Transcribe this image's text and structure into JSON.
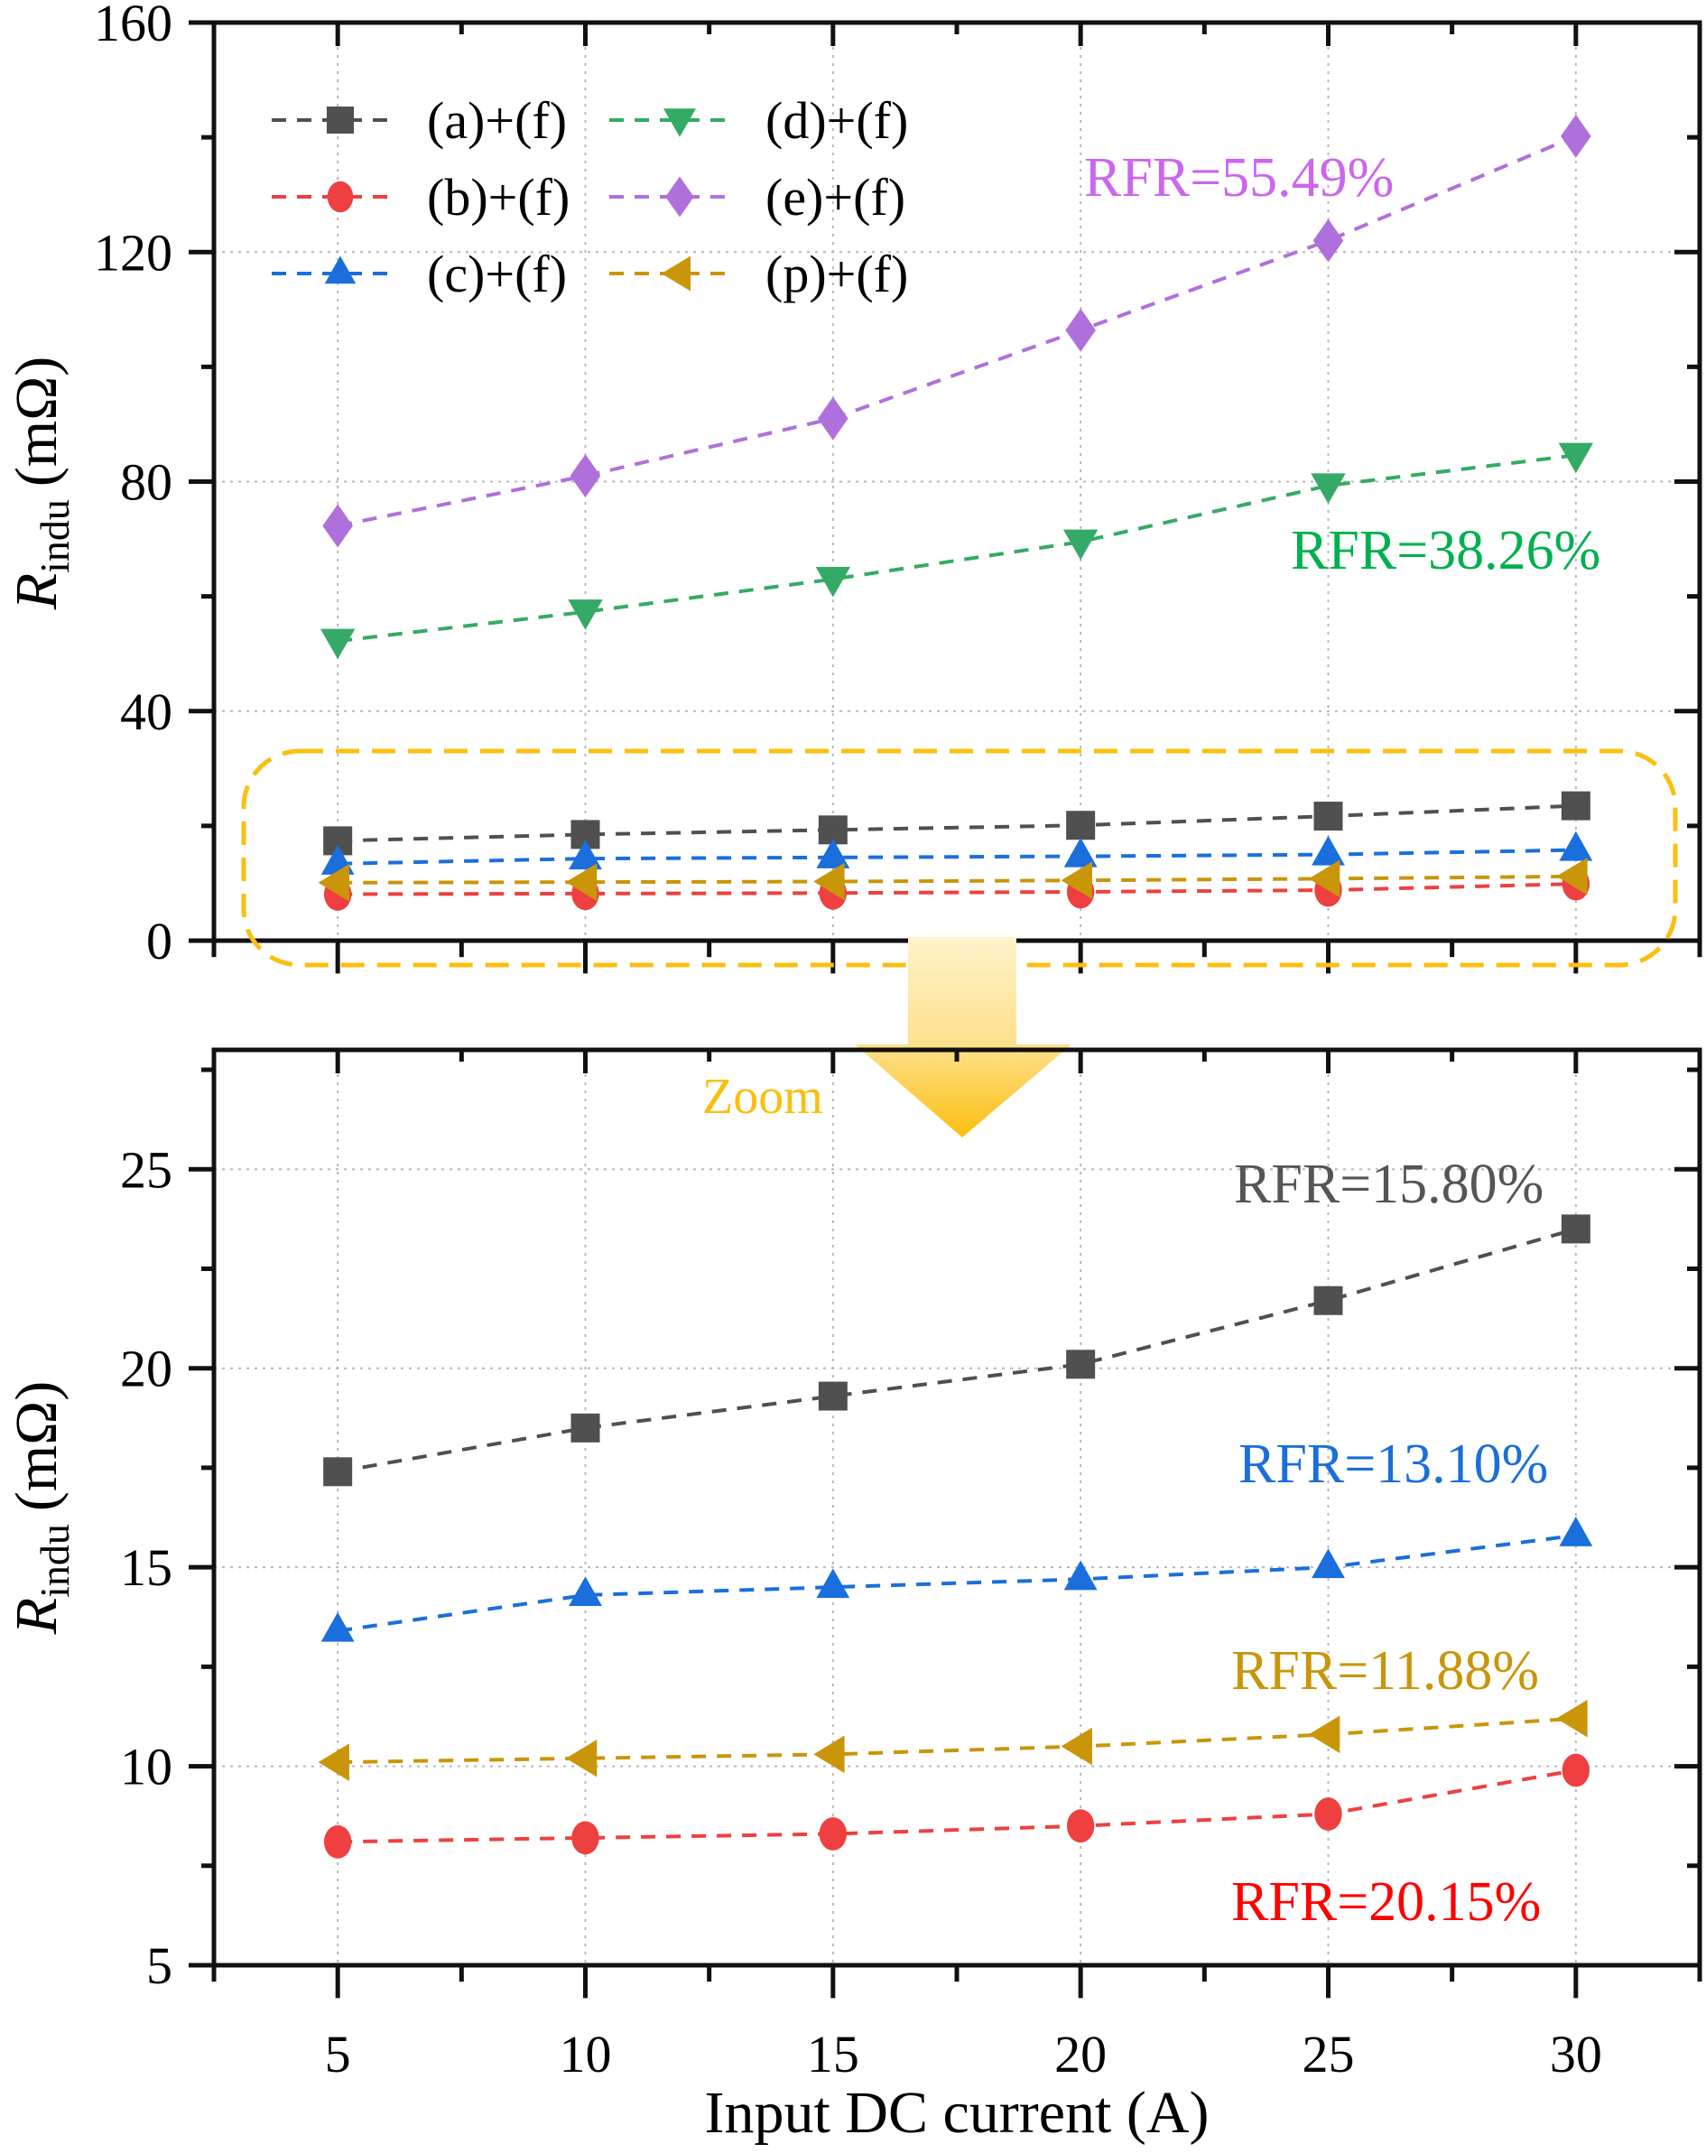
{
  "chart_data": [
    {
      "id": "overview",
      "type": "line",
      "title": "",
      "xlabel": "",
      "ylabel": "R_indu (mΩ)",
      "ylabel_main": "R",
      "ylabel_sub": "indu",
      "ylabel_unit": "(mΩ)",
      "xlim": [
        2.5,
        32.5
      ],
      "ylim": [
        0,
        160
      ],
      "x_ticks": [
        5,
        10,
        15,
        20,
        25,
        30
      ],
      "y_ticks": [
        0,
        40,
        80,
        120,
        160
      ],
      "y_tick_labels": [
        "0",
        "40",
        "80",
        "120",
        "160"
      ],
      "grid": true,
      "legend_position": "top-left",
      "x": [
        5,
        10,
        15,
        20,
        25,
        30
      ],
      "series": [
        {
          "name": "(a)+(f)",
          "marker": "square",
          "color": "#505050",
          "values": [
            17.4,
            18.5,
            19.3,
            20.1,
            21.7,
            23.5
          ]
        },
        {
          "name": "(b)+(f)",
          "marker": "circle",
          "color": "#ee4040",
          "values": [
            8.1,
            8.2,
            8.3,
            8.5,
            8.8,
            9.9
          ]
        },
        {
          "name": "(c)+(f)",
          "marker": "triangle-up",
          "color": "#1a6fdc",
          "values": [
            13.4,
            14.3,
            14.5,
            14.7,
            15.0,
            15.8
          ]
        },
        {
          "name": "(d)+(f)",
          "marker": "triangle-down",
          "color": "#35aa66",
          "values": [
            52.2,
            57.3,
            63.0,
            69.5,
            79.3,
            84.6
          ]
        },
        {
          "name": "(e)+(f)",
          "marker": "diamond",
          "color": "#b070dc",
          "values": [
            72.3,
            81.0,
            91.0,
            106.4,
            122.0,
            140.2
          ]
        },
        {
          "name": "(p)+(f)",
          "marker": "triangle-left",
          "color": "#c9960a",
          "values": [
            10.1,
            10.2,
            10.3,
            10.5,
            10.8,
            11.2
          ]
        }
      ],
      "legend_order": [
        0,
        3,
        1,
        4,
        2,
        5
      ],
      "annotations": [
        {
          "text": "RFR=55.49%",
          "color": "#cc66ee",
          "series": "(e)+(f)"
        },
        {
          "text": "RFR=38.26%",
          "color": "#00b050",
          "series": "(d)+(f)"
        }
      ],
      "highlight_box": {
        "label": "zoom region",
        "color": "#fbbf10",
        "y_range": [
          5,
          28
        ]
      }
    },
    {
      "id": "zoomed",
      "type": "line",
      "title": "",
      "xlabel": "Input DC current (A)",
      "ylabel": "R_indu (mΩ)",
      "ylabel_main": "R",
      "ylabel_sub": "indu",
      "ylabel_unit": "(mΩ)",
      "xlim": [
        2.5,
        32.5
      ],
      "ylim": [
        5,
        28
      ],
      "x_ticks": [
        5,
        10,
        15,
        20,
        25,
        30
      ],
      "x_tick_labels": [
        "5",
        "10",
        "15",
        "20",
        "25",
        "30"
      ],
      "y_ticks": [
        5,
        10,
        15,
        20,
        25
      ],
      "y_tick_labels": [
        "5",
        "10",
        "15",
        "20",
        "25"
      ],
      "grid": true,
      "x": [
        5,
        10,
        15,
        20,
        25,
        30
      ],
      "series": [
        {
          "name": "(a)+(f)",
          "marker": "square",
          "color": "#505050",
          "values": [
            17.4,
            18.5,
            19.3,
            20.1,
            21.7,
            23.5
          ]
        },
        {
          "name": "(b)+(f)",
          "marker": "circle",
          "color": "#ee4040",
          "values": [
            8.1,
            8.2,
            8.3,
            8.5,
            8.8,
            9.9
          ]
        },
        {
          "name": "(c)+(f)",
          "marker": "triangle-up",
          "color": "#1a6fdc",
          "values": [
            13.4,
            14.3,
            14.5,
            14.7,
            15.0,
            15.8
          ]
        },
        {
          "name": "(p)+(f)",
          "marker": "triangle-left",
          "color": "#c9960a",
          "values": [
            10.1,
            10.2,
            10.3,
            10.5,
            10.8,
            11.2
          ]
        }
      ],
      "annotations": [
        {
          "text": "RFR=15.80%",
          "color": "#555555",
          "series": "(a)+(f)"
        },
        {
          "text": "RFR=13.10%",
          "color": "#1a6fd8",
          "series": "(c)+(f)"
        },
        {
          "text": "RFR=11.88%",
          "color": "#c8960a",
          "series": "(p)+(f)"
        },
        {
          "text": "RFR=20.15%",
          "color": "#ff0000",
          "series": "(b)+(f)"
        }
      ]
    }
  ],
  "zoom_arrow": {
    "label": "Zoom",
    "color": "#fbbf10",
    "icon": "arrow-down-icon"
  }
}
